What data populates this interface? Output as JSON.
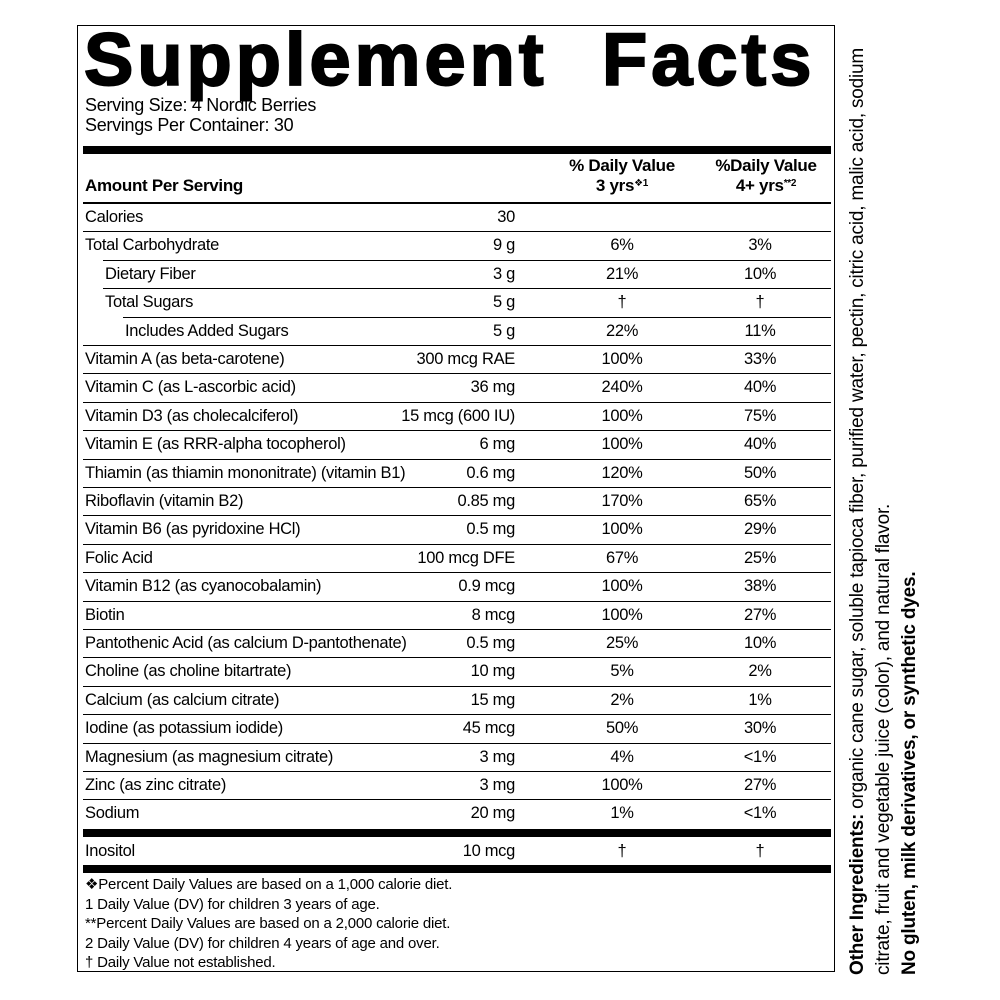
{
  "title": "Supplement Facts",
  "serving_size": "Serving Size: 4 Nordic Berries",
  "servings_per_container": "Servings Per Container: 30",
  "header": {
    "amount": "Amount Per Serving",
    "dv_3yrs": {
      "label": "% Daily Value",
      "age": "3 yrs",
      "mark": "❖1"
    },
    "dv_4yrs": {
      "label": "%Daily Value",
      "age": "4+ yrs",
      "mark": "**2"
    }
  },
  "rows": [
    {
      "name": "Calories",
      "amount": "30"
    },
    {
      "name": "Total Carbohydrate",
      "amount": "9 g",
      "dv_3yrs": "6%",
      "dv_4yrs": "3%",
      "sub_rows": [
        {
          "name": "Dietary Fiber",
          "amount": "3 g",
          "dv_3yrs": "21%",
          "dv_4yrs": "10%"
        },
        {
          "name": "Total Sugars",
          "amount": "5 g",
          "dv_3yrs": "†",
          "dv_4yrs": "†",
          "sub_rows": [
            {
              "name": "Includes Added Sugars",
              "amount": "5 g",
              "dv_3yrs": "22%",
              "dv_4yrs": "11%"
            }
          ]
        }
      ]
    },
    {
      "name": "Vitamin A (as beta-carotene)",
      "amount": "300 mcg RAE",
      "dv_3yrs": "100%",
      "dv_4yrs": "33%"
    },
    {
      "name": "Vitamin C (as L-ascorbic acid)",
      "amount": "36 mg",
      "dv_3yrs": "240%",
      "dv_4yrs": "40%"
    },
    {
      "name": "Vitamin D3 (as cholecalciferol)",
      "amount": "15 mcg (600 IU)",
      "dv_3yrs": "100%",
      "dv_4yrs": "75%"
    },
    {
      "name": "Vitamin E (as RRR-alpha tocopherol)",
      "amount": "6 mg",
      "dv_3yrs": "100%",
      "dv_4yrs": "40%"
    },
    {
      "name": "Thiamin (as thiamin mononitrate) (vitamin B1)",
      "amount": "0.6 mg",
      "dv_3yrs": "120%",
      "dv_4yrs": "50%"
    },
    {
      "name": "Riboflavin (vitamin B2)",
      "amount": "0.85 mg",
      "dv_3yrs": "170%",
      "dv_4yrs": "65%"
    },
    {
      "name": "Vitamin B6 (as pyridoxine HCl)",
      "amount": "0.5 mg",
      "dv_3yrs": "100%",
      "dv_4yrs": "29%"
    },
    {
      "name": "Folic Acid",
      "amount": "100 mcg DFE",
      "dv_3yrs": "67%",
      "dv_4yrs": "25%"
    },
    {
      "name": "Vitamin B12 (as cyanocobalamin)",
      "amount": "0.9 mcg",
      "dv_3yrs": "100%",
      "dv_4yrs": "38%"
    },
    {
      "name": "Biotin",
      "amount": "8 mcg",
      "dv_3yrs": "100%",
      "dv_4yrs": "27%"
    },
    {
      "name": "Pantothenic Acid (as calcium D-pantothenate)",
      "amount": "0.5 mg",
      "dv_3yrs": "25%",
      "dv_4yrs": "10%"
    },
    {
      "name": "Choline (as choline bitartrate)",
      "amount": "10 mg",
      "dv_3yrs": "5%",
      "dv_4yrs": "2%"
    },
    {
      "name": "Calcium (as calcium citrate)",
      "amount": "15 mg",
      "dv_3yrs": "2%",
      "dv_4yrs": "1%"
    },
    {
      "name": "Iodine (as potassium iodide)",
      "amount": "45 mcg",
      "dv_3yrs": "50%",
      "dv_4yrs": "30%"
    },
    {
      "name": "Magnesium (as magnesium citrate)",
      "amount": "3 mg",
      "dv_3yrs": "4%",
      "dv_4yrs": "<1%"
    },
    {
      "name": "Zinc (as zinc citrate)",
      "amount": "3 mg",
      "dv_3yrs": "100%",
      "dv_4yrs": "27%"
    },
    {
      "name": "Sodium",
      "amount": "20 mg",
      "dv_3yrs": "1%",
      "dv_4yrs": "<1%"
    }
  ],
  "extra_rows": [
    {
      "name": "Inositol",
      "amount": "10 mcg",
      "dv_3yrs": "†",
      "dv_4yrs": "†"
    }
  ],
  "footnotes": [
    "❖Percent Daily Values are based on a 1,000 calorie diet.",
    "1 Daily Value (DV) for children 3 years of age.",
    "**Percent Daily Values are based on a 2,000 calorie diet.",
    "2 Daily Value (DV) for children 4 years of age and over.",
    "† Daily Value not established."
  ],
  "other_ingredients": {
    "label": "Other Ingredients:",
    "text": "organic cane sugar, soluble tapioca fiber, purified water, pectin, citric acid, malic acid, sodium citrate, fruit and vegetable juice (color), and natural flavor."
  },
  "allergen_note": "No gluten, milk derivatives, or synthetic dyes."
}
